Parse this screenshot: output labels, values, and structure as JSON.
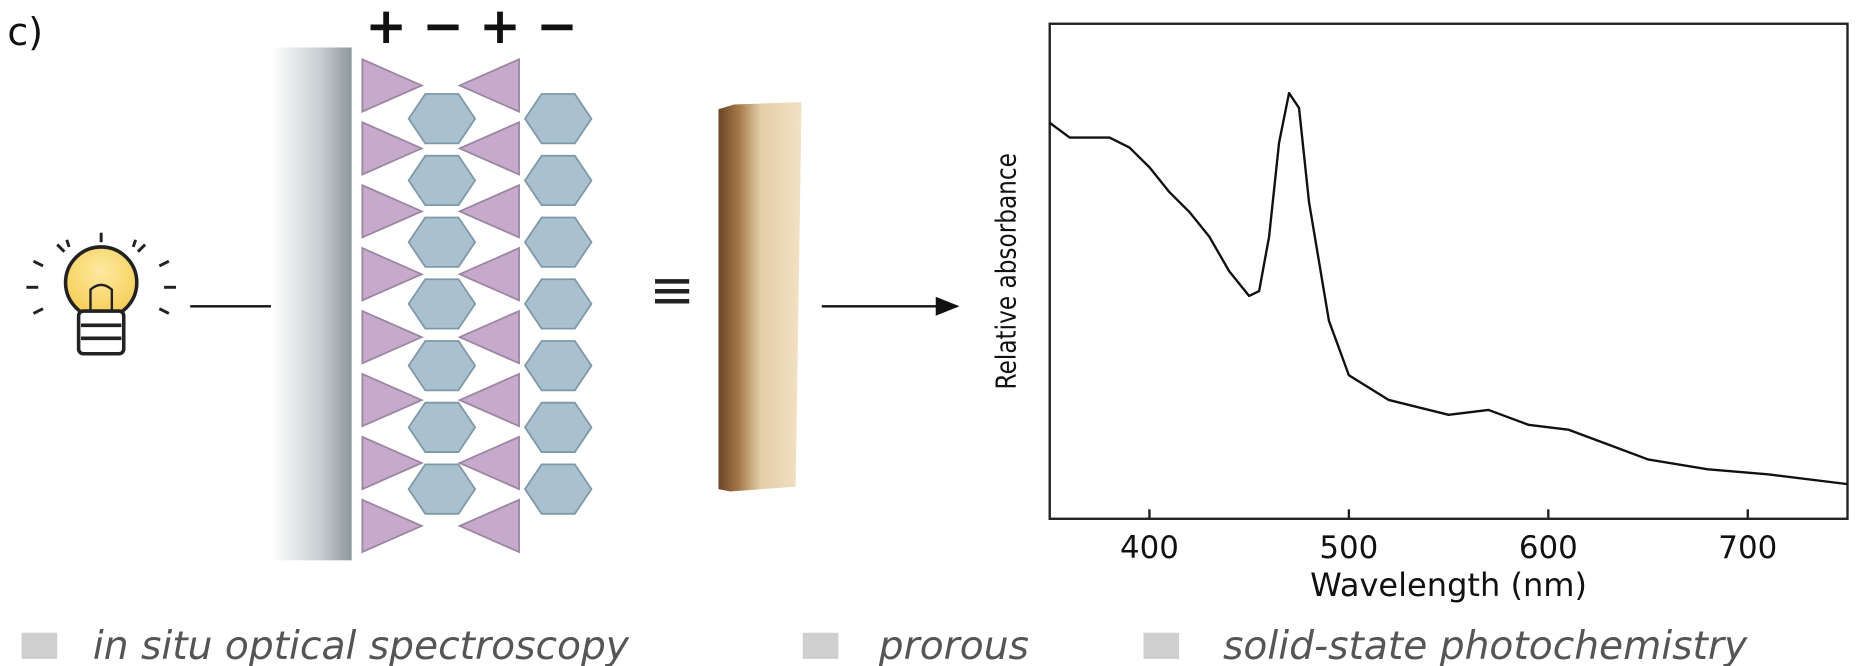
{
  "label": "c)",
  "signs": [
    "+",
    "−",
    "+",
    "−"
  ],
  "equiv": "≡",
  "keywords": [
    "in situ optical spectroscopy",
    "prorous",
    "solid-state photochemistry"
  ],
  "chart_data": {
    "type": "line",
    "xlabel": "Wavelength (nm)",
    "ylabel": "Relative absorbance",
    "x": [
      350,
      360,
      370,
      380,
      390,
      400,
      410,
      420,
      430,
      440,
      450,
      455,
      460,
      465,
      470,
      475,
      480,
      490,
      500,
      520,
      550,
      570,
      590,
      610,
      630,
      650,
      680,
      710,
      750
    ],
    "values": [
      0.8,
      0.77,
      0.77,
      0.77,
      0.75,
      0.71,
      0.66,
      0.62,
      0.57,
      0.5,
      0.45,
      0.46,
      0.57,
      0.76,
      0.86,
      0.83,
      0.64,
      0.4,
      0.29,
      0.24,
      0.21,
      0.22,
      0.19,
      0.18,
      0.15,
      0.12,
      0.1,
      0.09,
      0.07
    ],
    "color": "#111111",
    "xlim": [
      350,
      750
    ],
    "xticks": [
      400,
      500,
      600,
      700
    ],
    "ylim": [
      0,
      1
    ]
  }
}
